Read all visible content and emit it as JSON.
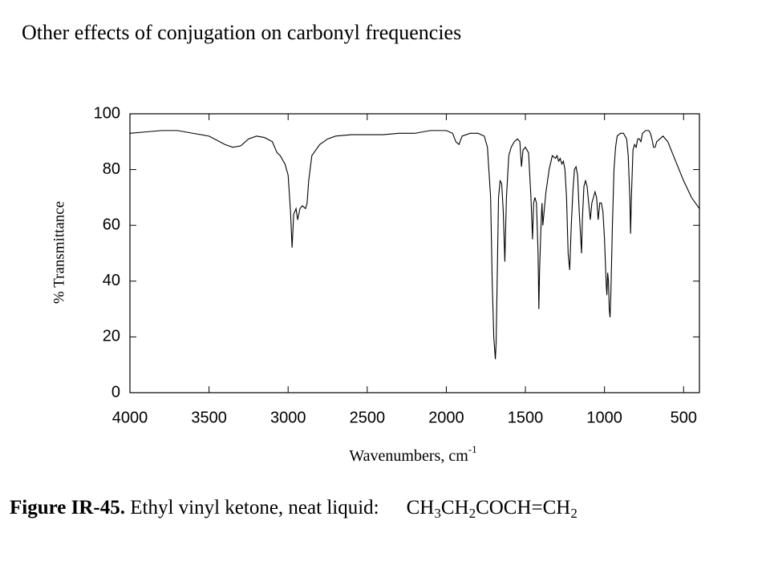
{
  "header": {
    "title": "Other effects of conjugation on carbonyl frequencies"
  },
  "chart_data": {
    "type": "line",
    "ylabel": "% Transmittance",
    "xlabel": "Wavenumbers, cm",
    "xlabel_superscript": "-1",
    "xlim": [
      4000,
      400
    ],
    "ylim": [
      0,
      100
    ],
    "xticks": [
      4000,
      3500,
      3000,
      2500,
      2000,
      1500,
      1000,
      500
    ],
    "yticks": [
      0,
      20,
      40,
      60,
      80,
      100
    ],
    "color": "#000000",
    "x": [
      4000,
      3900,
      3800,
      3700,
      3600,
      3500,
      3400,
      3350,
      3300,
      3250,
      3200,
      3150,
      3100,
      3070,
      3050,
      3020,
      3000,
      2985,
      2975,
      2965,
      2950,
      2940,
      2925,
      2910,
      2890,
      2880,
      2870,
      2850,
      2800,
      2750,
      2700,
      2600,
      2500,
      2400,
      2300,
      2200,
      2100,
      2000,
      1960,
      1940,
      1920,
      1900,
      1850,
      1800,
      1760,
      1740,
      1720,
      1710,
      1700,
      1695,
      1690,
      1685,
      1680,
      1670,
      1660,
      1650,
      1640,
      1630,
      1620,
      1605,
      1590,
      1570,
      1550,
      1535,
      1525,
      1515,
      1500,
      1480,
      1465,
      1455,
      1448,
      1440,
      1430,
      1420,
      1415,
      1410,
      1400,
      1395,
      1390,
      1380,
      1370,
      1350,
      1330,
      1310,
      1300,
      1290,
      1280,
      1270,
      1260,
      1250,
      1240,
      1230,
      1220,
      1210,
      1200,
      1190,
      1180,
      1170,
      1160,
      1150,
      1145,
      1140,
      1130,
      1120,
      1110,
      1100,
      1090,
      1080,
      1070,
      1060,
      1050,
      1040,
      1030,
      1020,
      1010,
      1000,
      990,
      985,
      980,
      975,
      970,
      965,
      960,
      950,
      940,
      930,
      920,
      900,
      880,
      860,
      850,
      840,
      835,
      830,
      820,
      810,
      800,
      790,
      780,
      770,
      760,
      740,
      720,
      710,
      700,
      690,
      680,
      670,
      650,
      630,
      600,
      550,
      500,
      450,
      400
    ],
    "values": [
      93,
      93.5,
      94,
      94,
      93,
      92,
      89,
      88,
      88.5,
      91,
      92,
      91.5,
      90,
      86,
      85,
      82,
      78,
      65,
      52,
      64,
      66,
      62,
      66,
      67,
      66,
      68,
      76,
      85,
      89,
      91,
      92,
      92.5,
      92.5,
      92.5,
      93,
      93,
      94,
      94,
      93,
      90,
      89,
      92,
      93,
      93,
      92,
      88,
      70,
      40,
      20,
      16,
      12,
      18,
      35,
      70,
      76,
      75,
      65,
      47,
      70,
      85,
      88,
      90,
      91,
      90,
      81,
      87,
      88,
      86,
      70,
      55,
      68,
      70,
      68,
      50,
      30,
      45,
      62,
      68,
      60,
      66,
      72,
      80,
      85,
      84,
      85,
      83,
      84,
      82,
      83,
      80,
      70,
      50,
      44,
      60,
      72,
      80,
      81,
      78,
      65,
      55,
      50,
      62,
      74,
      76,
      74,
      68,
      62,
      68,
      70,
      72,
      70,
      62,
      68,
      68,
      65,
      55,
      40,
      35,
      43,
      40,
      30,
      27,
      35,
      60,
      80,
      88,
      92,
      93,
      93,
      91,
      85,
      70,
      57,
      70,
      87,
      89,
      88,
      91,
      91,
      90,
      93,
      94,
      94,
      93,
      91,
      88,
      88,
      90,
      91,
      92,
      90,
      83,
      76,
      70,
      66
    ]
  },
  "caption": {
    "label": "Figure IR-45.",
    "text": " Ethyl vinyl ketone, neat liquid:",
    "formula": [
      "CH",
      "3",
      "CH",
      "2",
      "COCH=CH",
      "2"
    ]
  }
}
